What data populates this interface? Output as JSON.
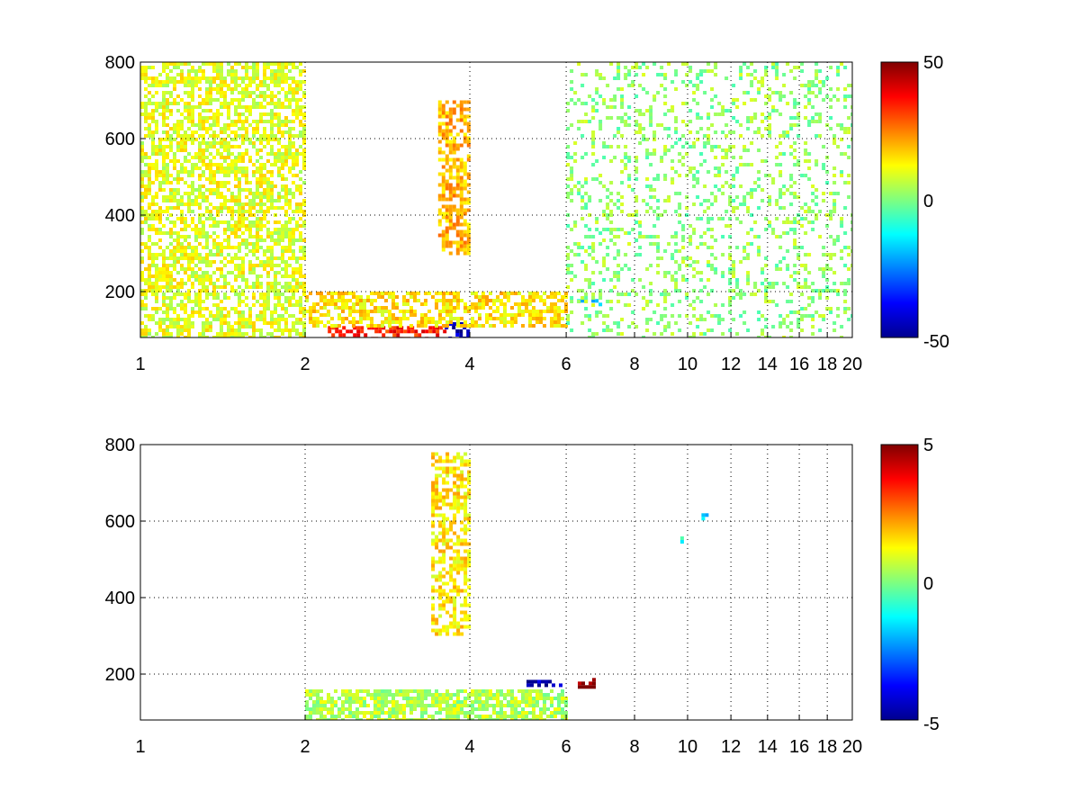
{
  "chart_data": [
    {
      "type": "heatmap",
      "title": "",
      "xlabel": "",
      "ylabel": "",
      "xscale": "log",
      "xlim": [
        1,
        20
      ],
      "ylim": [
        80,
        800
      ],
      "grid": true,
      "xticks": [
        1,
        2,
        4,
        6,
        8,
        10,
        12,
        14,
        16,
        18,
        20
      ],
      "xtick_labels": [
        "1",
        "2",
        "4",
        "6",
        "8",
        "10",
        "12",
        "14",
        "16",
        "18",
        "20"
      ],
      "yticks": [
        200,
        400,
        600,
        800
      ],
      "ytick_labels": [
        "200",
        "400",
        "600",
        "800"
      ],
      "colormap": "jet",
      "clim": [
        -50,
        50
      ],
      "colorbar_ticks": [
        -50,
        0,
        50
      ],
      "colorbar_labels": [
        "-50",
        "0",
        "50"
      ],
      "regions": [
        {
          "x": [
            3.6,
            4.0
          ],
          "y": [
            80,
            120
          ],
          "value": -45
        },
        {
          "x": [
            2.2,
            3.6
          ],
          "y": [
            80,
            110
          ],
          "value": 35
        },
        {
          "x": [
            3.5,
            4.0
          ],
          "y": [
            300,
            700
          ],
          "value": 20
        },
        {
          "x": [
            2.0,
            6.0
          ],
          "y": [
            110,
            200
          ],
          "value": 15
        },
        {
          "x": [
            6.0,
            7.0
          ],
          "y": [
            170,
            190
          ],
          "value": -15
        },
        {
          "x": [
            1.0,
            2.0
          ],
          "y": [
            80,
            800
          ],
          "value": 10
        },
        {
          "x": [
            6.0,
            20.0
          ],
          "y": [
            80,
            800
          ],
          "value": 2
        }
      ]
    },
    {
      "type": "heatmap",
      "title": "",
      "xlabel": "",
      "ylabel": "",
      "xscale": "log",
      "xlim": [
        1,
        20
      ],
      "ylim": [
        80,
        800
      ],
      "grid": true,
      "xticks": [
        1,
        2,
        4,
        6,
        8,
        10,
        12,
        14,
        16,
        18,
        20
      ],
      "xtick_labels": [
        "1",
        "2",
        "4",
        "6",
        "8",
        "10",
        "12",
        "14",
        "16",
        "18",
        "20"
      ],
      "yticks": [
        200,
        400,
        600,
        800
      ],
      "ytick_labels": [
        "200",
        "400",
        "600",
        "800"
      ],
      "colormap": "jet",
      "clim": [
        -5,
        5
      ],
      "colorbar_ticks": [
        -5,
        0,
        5
      ],
      "colorbar_labels": [
        "-5",
        "0",
        "5"
      ],
      "regions": [
        {
          "x": [
            2.0,
            6.0
          ],
          "y": [
            80,
            160
          ],
          "value": 0.5
        },
        {
          "x": [
            3.4,
            4.0
          ],
          "y": [
            300,
            780
          ],
          "value": 1.5
        },
        {
          "x": [
            5.0,
            6.0
          ],
          "y": [
            170,
            185
          ],
          "value": -4.5
        },
        {
          "x": [
            6.3,
            6.7
          ],
          "y": [
            170,
            190
          ],
          "value": 5.0
        },
        {
          "x": [
            10.6,
            10.8
          ],
          "y": [
            610,
            630
          ],
          "value": -2.0
        },
        {
          "x": [
            9.7,
            9.9
          ],
          "y": [
            550,
            560
          ],
          "value": -1.0
        }
      ]
    }
  ]
}
